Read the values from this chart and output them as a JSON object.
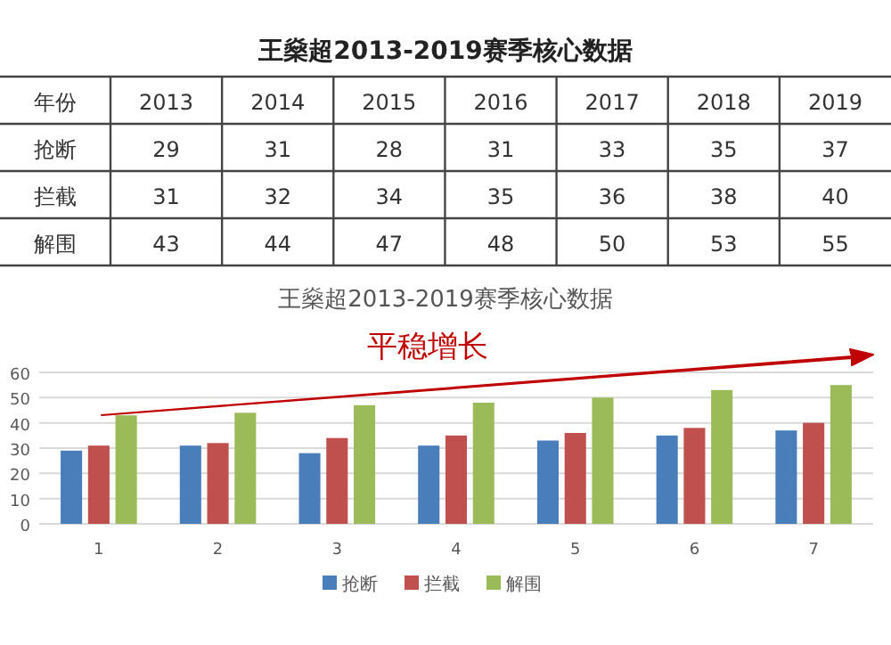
{
  "chart_data": [
    {
      "type": "heatmap",
      "title": "王燊超2013-2019赛季核心数据",
      "xlabel": "年份",
      "categories": [
        "2013",
        "2014",
        "2015",
        "2016",
        "2017",
        "2018",
        "2019"
      ],
      "y_categories": [
        "抢断",
        "拦截",
        "解围"
      ],
      "cells": [
        [
          29,
          31,
          28,
          31,
          33,
          35,
          37
        ],
        [
          31,
          32,
          34,
          35,
          36,
          38,
          40
        ],
        [
          43,
          44,
          47,
          48,
          50,
          53,
          55
        ]
      ],
      "data_labels": true
    },
    {
      "type": "bar",
      "title": "王燊超2013-2019赛季核心数据",
      "annotations": [
        "平稳增长"
      ],
      "categories": [
        "1",
        "2",
        "3",
        "4",
        "5",
        "6",
        "7"
      ],
      "series": [
        {
          "name": "抢断",
          "color": "#4a7ebb",
          "values": [
            29,
            31,
            28,
            31,
            33,
            35,
            37
          ]
        },
        {
          "name": "拦截",
          "color": "#c0504d",
          "values": [
            31,
            32,
            34,
            35,
            36,
            38,
            40
          ]
        },
        {
          "name": "解围",
          "color": "#9bbb59",
          "values": [
            43,
            44,
            47,
            48,
            50,
            53,
            55
          ]
        }
      ],
      "ylim": [
        0,
        60
      ],
      "yticks": [
        0,
        10,
        20,
        30,
        40,
        50,
        60
      ],
      "grid": "y",
      "legend": "bottom"
    }
  ]
}
